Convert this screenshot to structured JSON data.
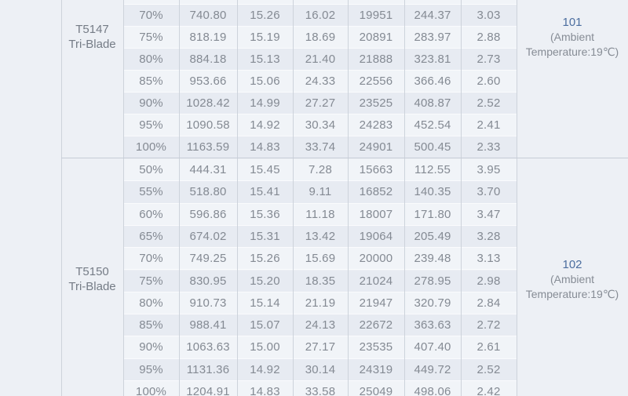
{
  "colors": {
    "panel_bg": "#edf0f5",
    "row_dark": "#e7ebf2",
    "row_light": "#f1f4f8",
    "row_separator": "#fafbfd",
    "grid_border": "#cdd3db",
    "value_text": "#848a93",
    "remark_ref_blue": "#4c6e9f"
  },
  "table": {
    "sections": [
      {
        "model": "T5147\nTri-Blade",
        "remark": {
          "ref": "101",
          "note": "(Ambient Temperature:19℃)"
        },
        "rows": [
          {
            "load": "70%",
            "values": [
              "740.80",
              "15.26",
              "16.02",
              "19951",
              "244.37",
              "3.03"
            ]
          },
          {
            "load": "75%",
            "values": [
              "818.19",
              "15.19",
              "18.69",
              "20891",
              "283.97",
              "2.88"
            ]
          },
          {
            "load": "80%",
            "values": [
              "884.18",
              "15.13",
              "21.40",
              "21888",
              "323.81",
              "2.73"
            ]
          },
          {
            "load": "85%",
            "values": [
              "953.66",
              "15.06",
              "24.33",
              "22556",
              "366.46",
              "2.60"
            ]
          },
          {
            "load": "90%",
            "values": [
              "1028.42",
              "14.99",
              "27.27",
              "23525",
              "408.87",
              "2.52"
            ]
          },
          {
            "load": "95%",
            "values": [
              "1090.58",
              "14.92",
              "30.34",
              "24283",
              "452.54",
              "2.41"
            ]
          },
          {
            "load": "100%",
            "values": [
              "1163.59",
              "14.83",
              "33.74",
              "24901",
              "500.45",
              "2.33"
            ]
          }
        ]
      },
      {
        "model": "T5150\nTri-Blade",
        "remark": {
          "ref": "102",
          "note": "(Ambient Temperature:19℃)"
        },
        "rows": [
          {
            "load": "50%",
            "values": [
              "444.31",
              "15.45",
              "7.28",
              "15663",
              "112.55",
              "3.95"
            ]
          },
          {
            "load": "55%",
            "values": [
              "518.80",
              "15.41",
              "9.11",
              "16852",
              "140.35",
              "3.70"
            ]
          },
          {
            "load": "60%",
            "values": [
              "596.86",
              "15.36",
              "11.18",
              "18007",
              "171.80",
              "3.47"
            ]
          },
          {
            "load": "65%",
            "values": [
              "674.02",
              "15.31",
              "13.42",
              "19064",
              "205.49",
              "3.28"
            ]
          },
          {
            "load": "70%",
            "values": [
              "749.25",
              "15.26",
              "15.69",
              "20000",
              "239.48",
              "3.13"
            ]
          },
          {
            "load": "75%",
            "values": [
              "830.95",
              "15.20",
              "18.35",
              "21024",
              "278.95",
              "2.98"
            ]
          },
          {
            "load": "80%",
            "values": [
              "910.73",
              "15.14",
              "21.19",
              "21947",
              "320.79",
              "2.84"
            ]
          },
          {
            "load": "85%",
            "values": [
              "988.41",
              "15.07",
              "24.13",
              "22672",
              "363.63",
              "2.72"
            ]
          },
          {
            "load": "90%",
            "values": [
              "1063.63",
              "15.00",
              "27.17",
              "23535",
              "407.40",
              "2.61"
            ]
          },
          {
            "load": "95%",
            "values": [
              "1131.36",
              "14.92",
              "30.14",
              "24319",
              "449.72",
              "2.52"
            ]
          },
          {
            "load": "100%",
            "values": [
              "1204.91",
              "14.83",
              "33.58",
              "25049",
              "498.06",
              "2.42"
            ]
          }
        ]
      }
    ]
  }
}
